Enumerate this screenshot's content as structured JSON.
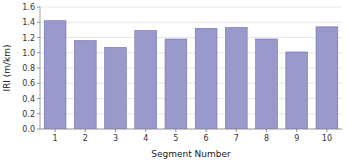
{
  "chart_data": {
    "type": "bar",
    "categories": [
      1,
      2,
      3,
      4,
      5,
      6,
      7,
      8,
      9,
      10
    ],
    "values": [
      1.42,
      1.16,
      1.07,
      1.29,
      1.18,
      1.32,
      1.33,
      1.18,
      1.01,
      1.34
    ],
    "color": "#9999cc",
    "xlabel": "Segment Number",
    "ylabel": "IRI (m/km)",
    "ylim": [
      0.0,
      1.6
    ],
    "yticks": [
      {
        "value": 0.0,
        "label": "0.0"
      },
      0.2,
      0.4,
      0.6,
      0.8,
      {
        "value": 1.0,
        "label": "1.0"
      },
      1.2,
      1.4,
      1.6
    ],
    "grid": true
  }
}
